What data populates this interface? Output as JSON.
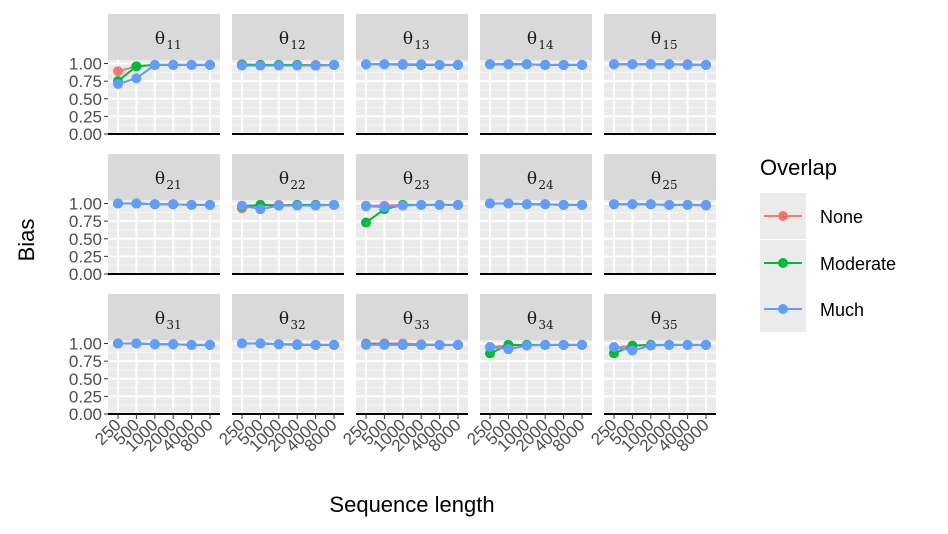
{
  "chart_data": {
    "type": "line",
    "xlabel": "Sequence length",
    "ylabel": "Bias",
    "x": [
      "250",
      "500",
      "1000",
      "2000",
      "4000",
      "8000"
    ],
    "y_ticks": [
      "0.00",
      "0.25",
      "0.50",
      "0.75",
      "1.00"
    ],
    "ylim": [
      0,
      1.05
    ],
    "grid": true,
    "facet_rows": 3,
    "facet_cols": 5,
    "legend": {
      "title": "Overlap",
      "position": "right",
      "entries": [
        {
          "name": "None",
          "color": "#F8766D"
        },
        {
          "name": "Moderate",
          "color": "#00BA38"
        },
        {
          "name": "Much",
          "color": "#619CFF"
        }
      ]
    },
    "series_names": [
      "None",
      "Moderate",
      "Much"
    ],
    "series_colors": [
      "#F8766D",
      "#00BA38",
      "#619CFF"
    ],
    "panels": [
      {
        "label": "θ",
        "sub": "11",
        "values": [
          [
            0.89,
            0.96,
            0.98,
            0.98,
            0.98,
            0.98
          ],
          [
            0.75,
            0.96,
            0.98,
            0.98,
            0.98,
            0.98
          ],
          [
            0.71,
            0.79,
            0.98,
            0.98,
            0.98,
            0.98
          ]
        ]
      },
      {
        "label": "θ",
        "sub": "12",
        "values": [
          [
            0.99,
            0.98,
            0.98,
            0.98,
            0.98,
            0.98
          ],
          [
            0.98,
            0.98,
            0.98,
            0.98,
            0.97,
            0.98
          ],
          [
            0.97,
            0.97,
            0.97,
            0.97,
            0.97,
            0.98
          ]
        ]
      },
      {
        "label": "θ",
        "sub": "13",
        "values": [
          [
            0.99,
            0.99,
            0.98,
            0.98,
            0.98,
            0.98
          ],
          [
            0.99,
            0.99,
            0.99,
            0.98,
            0.98,
            0.98
          ],
          [
            0.99,
            0.99,
            0.99,
            0.99,
            0.98,
            0.98
          ]
        ]
      },
      {
        "label": "θ",
        "sub": "14",
        "values": [
          [
            0.99,
            0.99,
            0.99,
            0.98,
            0.98,
            0.98
          ],
          [
            0.99,
            0.99,
            0.99,
            0.98,
            0.98,
            0.98
          ],
          [
            0.99,
            0.99,
            0.99,
            0.98,
            0.98,
            0.98
          ]
        ]
      },
      {
        "label": "θ",
        "sub": "15",
        "values": [
          [
            0.99,
            0.99,
            0.99,
            0.99,
            0.99,
            0.98
          ],
          [
            0.99,
            0.99,
            0.99,
            0.99,
            0.98,
            0.98
          ],
          [
            0.99,
            0.99,
            0.99,
            0.99,
            0.98,
            0.98
          ]
        ]
      },
      {
        "label": "θ",
        "sub": "21",
        "values": [
          [
            1.0,
            1.0,
            0.99,
            0.99,
            0.98,
            0.98
          ],
          [
            1.0,
            1.0,
            0.99,
            0.99,
            0.98,
            0.98
          ],
          [
            1.0,
            1.0,
            0.99,
            0.99,
            0.98,
            0.98
          ]
        ]
      },
      {
        "label": "θ",
        "sub": "22",
        "values": [
          [
            0.93,
            0.98,
            0.98,
            0.98,
            0.98,
            0.98
          ],
          [
            0.96,
            0.98,
            0.97,
            0.98,
            0.98,
            0.98
          ],
          [
            0.97,
            0.92,
            0.97,
            0.97,
            0.97,
            0.98
          ]
        ]
      },
      {
        "label": "θ",
        "sub": "23",
        "values": [
          [
            0.97,
            0.97,
            0.98,
            0.98,
            0.98,
            0.98
          ],
          [
            0.73,
            0.92,
            0.98,
            0.98,
            0.98,
            0.98
          ],
          [
            0.96,
            0.95,
            0.97,
            0.98,
            0.98,
            0.98
          ]
        ]
      },
      {
        "label": "θ",
        "sub": "24",
        "values": [
          [
            1.0,
            1.0,
            0.99,
            0.99,
            0.98,
            0.98
          ],
          [
            1.0,
            1.0,
            0.99,
            0.99,
            0.98,
            0.98
          ],
          [
            1.0,
            1.0,
            0.99,
            0.99,
            0.98,
            0.98
          ]
        ]
      },
      {
        "label": "θ",
        "sub": "25",
        "values": [
          [
            0.99,
            0.99,
            0.99,
            0.98,
            0.98,
            0.97
          ],
          [
            0.99,
            0.99,
            0.99,
            0.98,
            0.98,
            0.98
          ],
          [
            0.99,
            0.99,
            0.99,
            0.98,
            0.98,
            0.98
          ]
        ]
      },
      {
        "label": "θ",
        "sub": "31",
        "values": [
          [
            1.0,
            1.0,
            0.99,
            0.99,
            0.98,
            0.98
          ],
          [
            1.0,
            1.0,
            0.99,
            0.99,
            0.98,
            0.98
          ],
          [
            1.0,
            1.0,
            0.99,
            0.99,
            0.98,
            0.98
          ]
        ]
      },
      {
        "label": "θ",
        "sub": "32",
        "values": [
          [
            1.0,
            1.0,
            0.99,
            0.99,
            0.98,
            0.98
          ],
          [
            1.0,
            1.0,
            0.99,
            0.98,
            0.98,
            0.98
          ],
          [
            1.0,
            1.0,
            0.99,
            0.99,
            0.98,
            0.98
          ]
        ]
      },
      {
        "label": "θ",
        "sub": "33",
        "values": [
          [
            1.0,
            1.0,
            1.0,
            0.99,
            0.98,
            0.98
          ],
          [
            0.99,
            0.99,
            0.98,
            0.98,
            0.98,
            0.98
          ],
          [
            0.98,
            0.98,
            0.98,
            0.98,
            0.98,
            0.98
          ]
        ]
      },
      {
        "label": "θ",
        "sub": "34",
        "values": [
          [
            0.95,
            0.97,
            0.98,
            0.98,
            0.98,
            0.98
          ],
          [
            0.86,
            0.98,
            0.98,
            0.98,
            0.98,
            0.98
          ],
          [
            0.95,
            0.92,
            0.97,
            0.98,
            0.98,
            0.98
          ]
        ]
      },
      {
        "label": "θ",
        "sub": "35",
        "values": [
          [
            0.94,
            0.97,
            0.98,
            0.98,
            0.98,
            0.98
          ],
          [
            0.86,
            0.97,
            0.98,
            0.98,
            0.98,
            0.98
          ],
          [
            0.95,
            0.9,
            0.97,
            0.98,
            0.98,
            0.98
          ]
        ]
      }
    ]
  }
}
